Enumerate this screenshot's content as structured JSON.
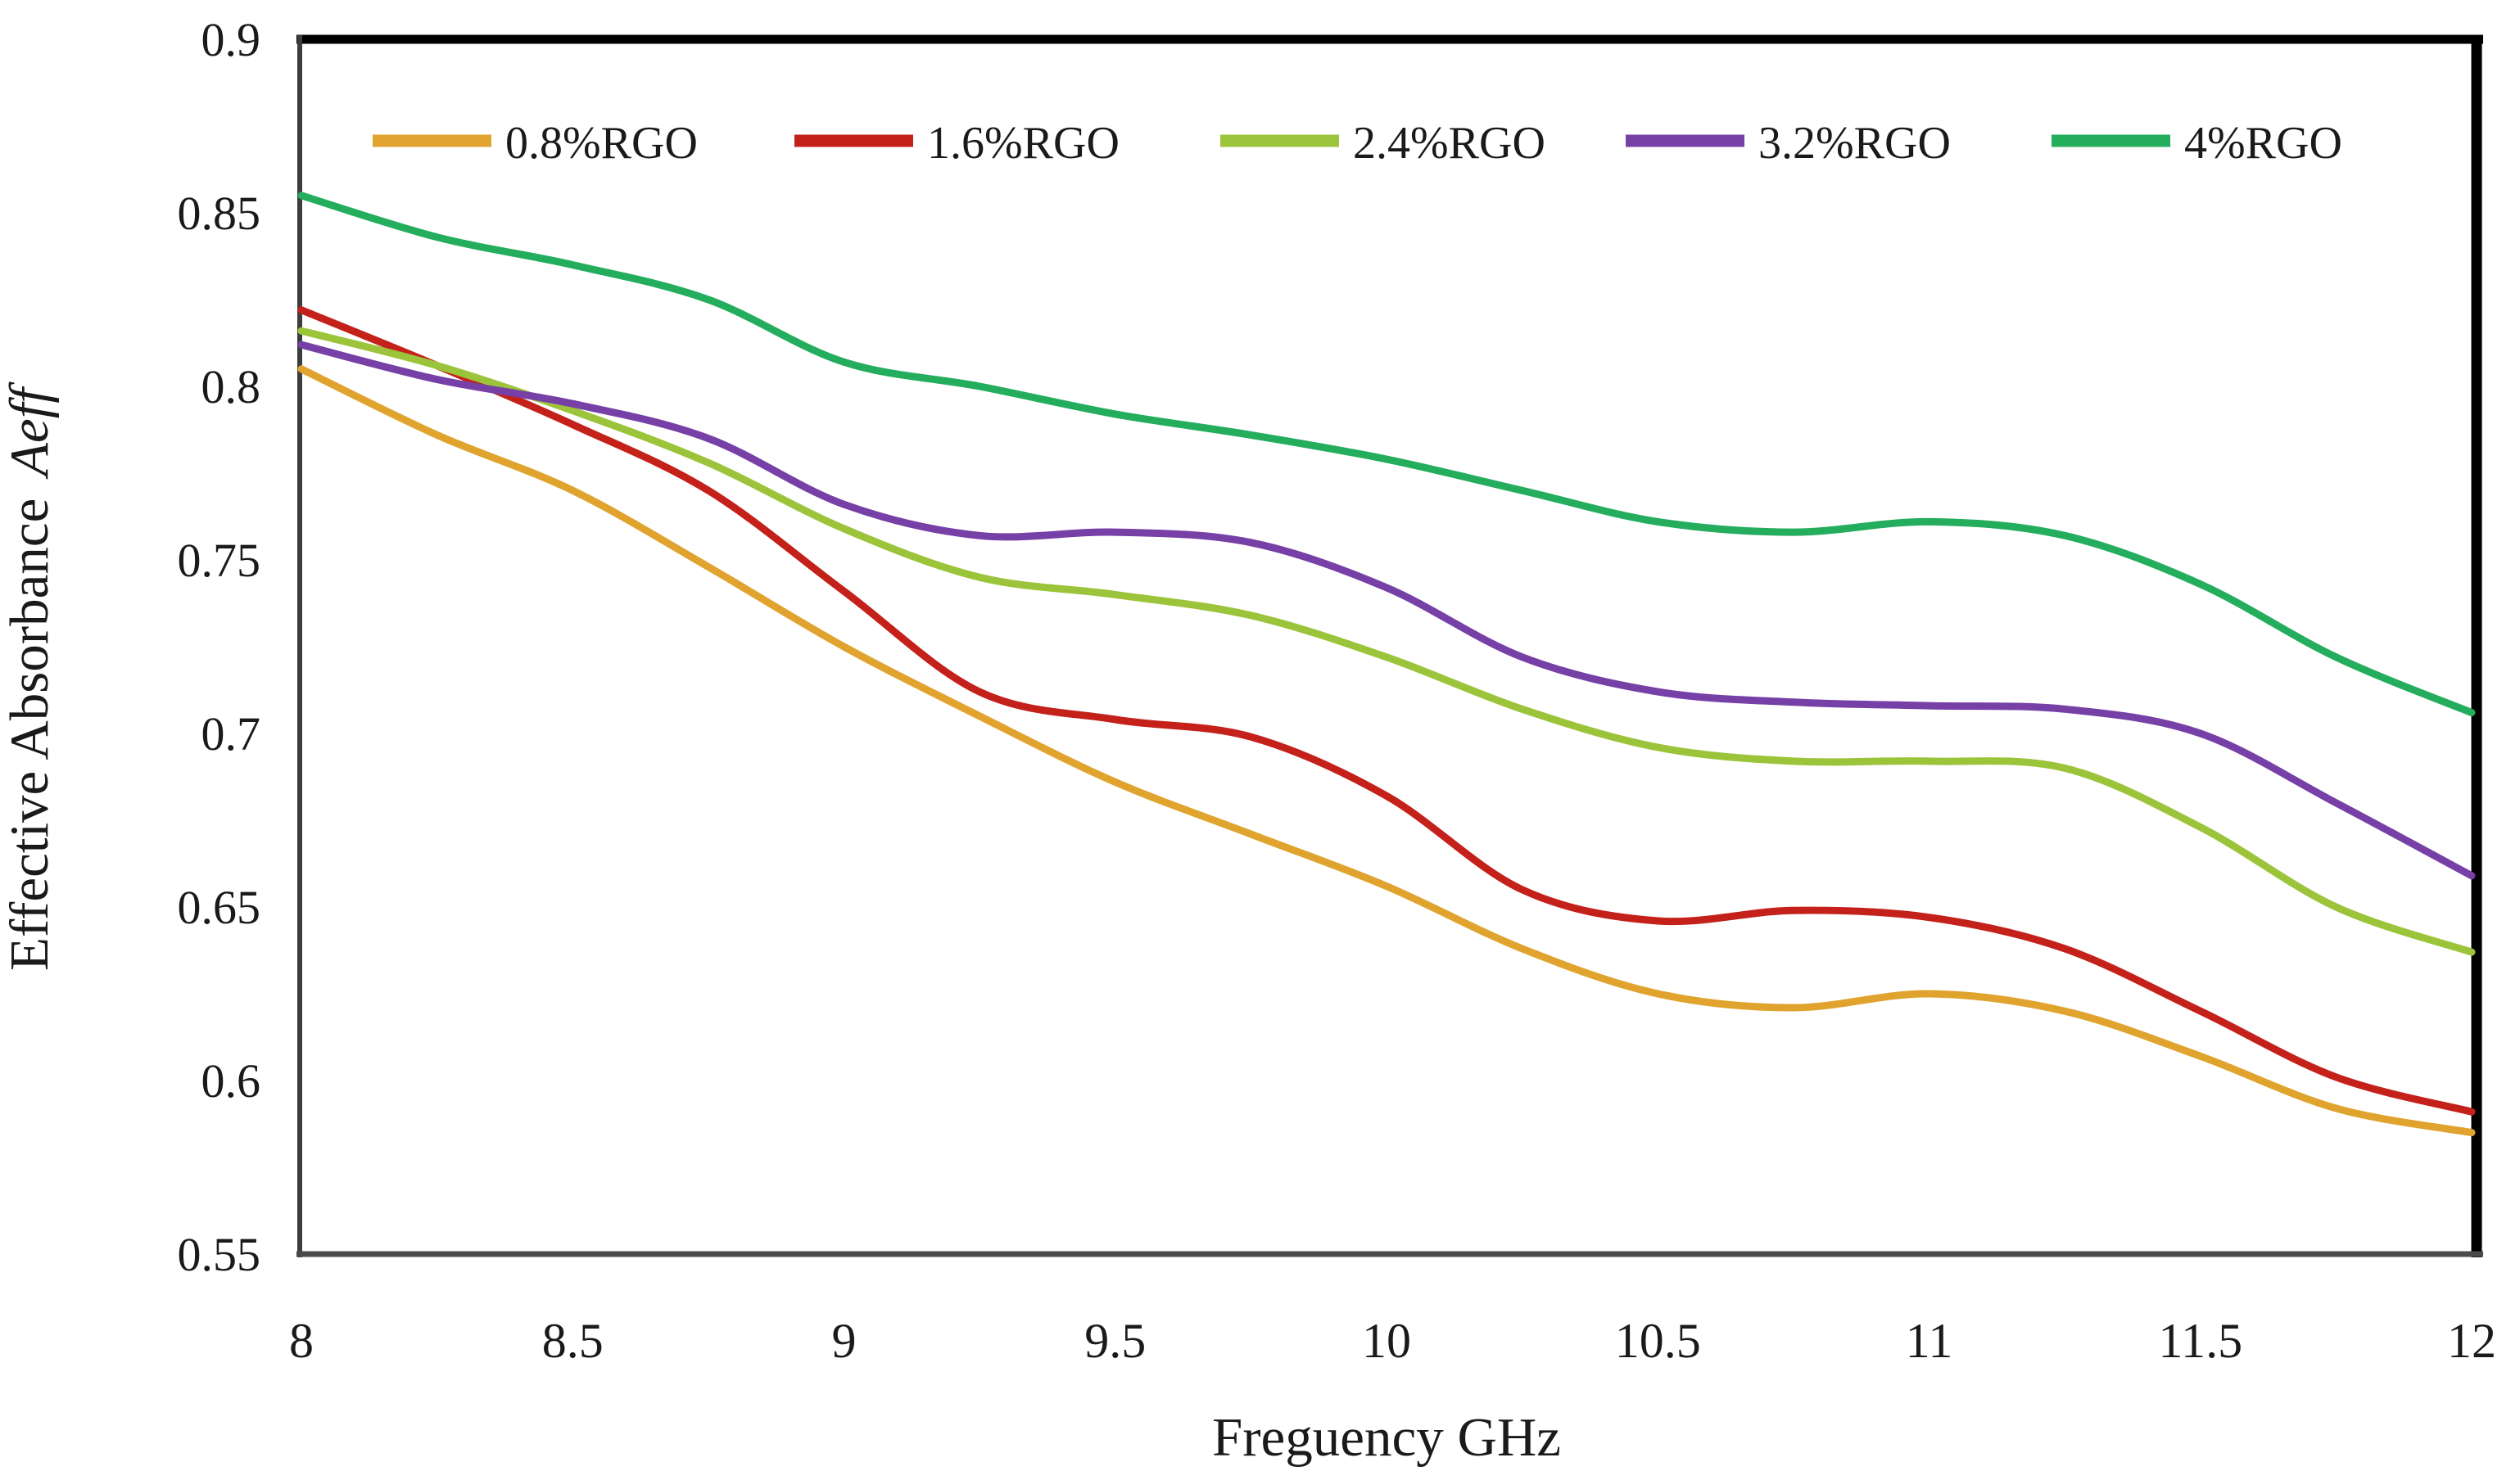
{
  "chart_data": {
    "type": "line",
    "title": "",
    "xlabel": "Freguency GHz",
    "ylabel": "Effective Absorbance ",
    "ylabel_italic": "Aeff",
    "xlim": [
      8,
      12
    ],
    "ylim": [
      0.55,
      0.9
    ],
    "grid": false,
    "legend_position": "top-inside-horizontal",
    "x_tick_labels": [
      "8",
      "8.5",
      "9",
      "9.5",
      "10",
      "10.5",
      "11",
      "11.5",
      "12"
    ],
    "y_tick_labels": [
      "0.9",
      "0.85",
      "0.8",
      "0.75",
      "0.7",
      "0.65",
      "0.6",
      "0.55"
    ],
    "x": [
      8,
      8.25,
      8.5,
      8.75,
      9,
      9.25,
      9.5,
      9.75,
      10,
      10.25,
      10.5,
      10.75,
      11,
      11.25,
      11.5,
      11.75,
      12
    ],
    "series": [
      {
        "name": "0.8%RGO",
        "color": "#E0A32E",
        "values": [
          0.805,
          0.786,
          0.77,
          0.748,
          0.725,
          0.705,
          0.686,
          0.671,
          0.656,
          0.638,
          0.625,
          0.621,
          0.625,
          0.62,
          0.607,
          0.592,
          0.585
        ]
      },
      {
        "name": "1.6%RGO",
        "color": "#C5211B",
        "values": [
          0.822,
          0.806,
          0.789,
          0.77,
          0.741,
          0.712,
          0.704,
          0.699,
          0.682,
          0.655,
          0.646,
          0.649,
          0.647,
          0.638,
          0.62,
          0.601,
          0.591
        ]
      },
      {
        "name": "2.4%RGO",
        "color": "#9CC43B",
        "values": [
          0.816,
          0.806,
          0.793,
          0.778,
          0.759,
          0.745,
          0.74,
          0.734,
          0.722,
          0.707,
          0.696,
          0.692,
          0.692,
          0.69,
          0.673,
          0.65,
          0.637
        ]
      },
      {
        "name": "3.2%RGO",
        "color": "#7740A6",
        "values": [
          0.812,
          0.802,
          0.795,
          0.785,
          0.766,
          0.757,
          0.758,
          0.755,
          0.742,
          0.722,
          0.712,
          0.709,
          0.708,
          0.707,
          0.7,
          0.68,
          0.659
        ]
      },
      {
        "name": "4%RGO",
        "color": "#23AD5C",
        "values": [
          0.855,
          0.843,
          0.835,
          0.825,
          0.807,
          0.8,
          0.792,
          0.786,
          0.779,
          0.77,
          0.761,
          0.758,
          0.761,
          0.757,
          0.743,
          0.722,
          0.706
        ]
      }
    ]
  },
  "frame": {
    "top_color": "#000000",
    "right_color": "#000000",
    "left_color": "#3d3d3d",
    "bottom_color": "#4a4a4a"
  }
}
